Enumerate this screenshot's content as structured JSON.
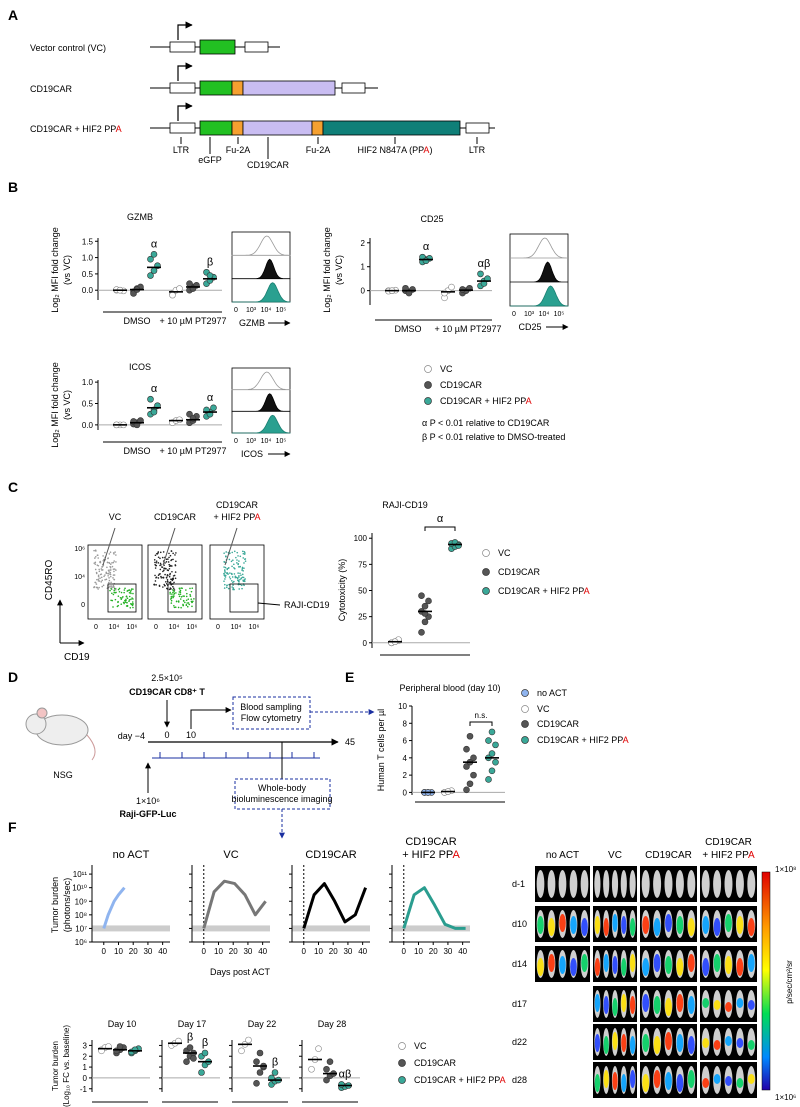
{
  "panels": {
    "a": "A",
    "b": "B",
    "c": "C",
    "d": "D",
    "e": "E",
    "f": "F"
  },
  "constructs": {
    "rows": [
      "Vector control (VC)",
      "CD19CAR",
      [
        "CD19CAR + HIF2 PP",
        "A"
      ]
    ],
    "annotations": [
      "LTR",
      "eGFP",
      "Fu-2A",
      "CD19CAR",
      "Fu-2A",
      [
        "HIF2 N847A (PP",
        "A",
        ")"
      ],
      "LTR"
    ]
  },
  "expression": {
    "ylabel": [
      "Log₂ MFI fold change",
      "(vs VC)"
    ],
    "conditions": [
      "DMSO",
      "+ 10 µM PT2977"
    ],
    "hist_ticks": [
      "0",
      "10³",
      "10⁴",
      "10⁵"
    ],
    "plots": [
      {
        "title": "GZMB",
        "hist_label": "GZMB",
        "ylim": [
          -0.3,
          1.6
        ],
        "yticks": [
          {
            "value": 0,
            "label": "0.0"
          },
          {
            "value": 0.5,
            "label": "0.5"
          },
          {
            "value": 1,
            "label": "1.0"
          },
          {
            "value": 1.5,
            "label": "1.5"
          }
        ],
        "groups": [
          {
            "points": [
              0,
              0,
              -0.02,
              0.02,
              0
            ],
            "median": 0,
            "color": "#ffffff"
          },
          {
            "points": [
              -0.05,
              0.05,
              0.1,
              -0.1,
              0.02
            ],
            "median": 0.02,
            "color": "#555555"
          },
          {
            "points": [
              0.45,
              0.6,
              0.75,
              0.95,
              1.1
            ],
            "median": 0.7,
            "color": "#3aa898",
            "label": "α"
          },
          {
            "points": [
              -0.1,
              0,
              0.05,
              -0.15
            ],
            "median": -0.05,
            "color": "#ffffff"
          },
          {
            "points": [
              0,
              0.1,
              0.15,
              0.2,
              0.05
            ],
            "median": 0.1,
            "color": "#555555"
          },
          {
            "points": [
              0.2,
              0.3,
              0.4,
              0.55,
              0.45
            ],
            "median": 0.35,
            "color": "#3aa898",
            "label": "β"
          }
        ]
      },
      {
        "title": "CD25",
        "hist_label": "CD25",
        "ylim": [
          -0.6,
          2.2
        ],
        "yticks": [
          0,
          1,
          2
        ],
        "groups": [
          {
            "points": [
              0,
              0,
              0.02,
              -0.02,
              0
            ],
            "median": 0,
            "color": "#ffffff"
          },
          {
            "points": [
              0,
              -0.05,
              0.05,
              0.1,
              -0.1
            ],
            "median": 0,
            "color": "#555555"
          },
          {
            "points": [
              1.2,
              1.3,
              1.35,
              1.4,
              1.25
            ],
            "median": 1.3,
            "color": "#3aa898",
            "label": "α"
          },
          {
            "points": [
              -0.3,
              0,
              0.15,
              -0.1
            ],
            "median": -0.05,
            "color": "#ffffff"
          },
          {
            "points": [
              -0.1,
              0,
              0.1,
              0.05
            ],
            "median": 0.02,
            "color": "#555555"
          },
          {
            "points": [
              0.2,
              0.4,
              0.5,
              0.7,
              0.3
            ],
            "median": 0.4,
            "color": "#3aa898",
            "label": "αβ"
          }
        ]
      },
      {
        "title": "ICOS",
        "hist_label": "ICOS",
        "ylim": [
          -0.12,
          1.05
        ],
        "yticks": [
          {
            "value": 0,
            "label": "0.0"
          },
          {
            "value": 0.5,
            "label": "0.5"
          },
          {
            "value": 1,
            "label": "1.0"
          }
        ],
        "groups": [
          {
            "points": [
              0,
              0,
              0,
              0
            ],
            "median": 0,
            "color": "#ffffff"
          },
          {
            "points": [
              0.02,
              0.05,
              0.1,
              0.08,
              0
            ],
            "median": 0.05,
            "color": "#555555"
          },
          {
            "points": [
              0.25,
              0.35,
              0.45,
              0.6,
              0.3
            ],
            "median": 0.4,
            "color": "#3aa898",
            "label": "α"
          },
          {
            "points": [
              0.05,
              0.1,
              0.12
            ],
            "median": 0.1,
            "color": "#ffffff"
          },
          {
            "points": [
              0.05,
              0.1,
              0.2,
              0.25,
              0.15
            ],
            "median": 0.12,
            "color": "#555555"
          },
          {
            "points": [
              0.2,
              0.3,
              0.4,
              0.35,
              0.25
            ],
            "median": 0.3,
            "color": "#3aa898",
            "label": "α"
          }
        ]
      }
    ],
    "legend": [
      {
        "name": "VC",
        "color": "#ffffff"
      },
      {
        "name": "CD19CAR",
        "color": "#555555"
      },
      {
        "name": [
          "CD19CAR + HIF2 PP",
          "A"
        ],
        "color": "#3aa898"
      }
    ],
    "notes": [
      "α P < 0.01 relative to CD19CAR",
      "β P < 0.01 relative to DMSO-treated"
    ]
  },
  "cytotoxicity": {
    "flow_titles": [
      [
        "VC"
      ],
      [
        "CD19CAR"
      ],
      [
        "CD19CAR",
        [
          "+ HIF2 PP",
          "A"
        ]
      ]
    ],
    "y_axis": "CD45RO",
    "x_axis": "CD19",
    "gate": "RAJI-CD19",
    "flow_yticks": [
      "10⁶",
      "10⁴",
      "0"
    ],
    "flow_xticks": [
      "0",
      "10⁴",
      "10⁶"
    ],
    "chart": {
      "title": "RAJI-CD19",
      "ylabel": "Cytotoxicity (%)",
      "ylim": [
        -5,
        105
      ],
      "yticks": [
        0,
        25,
        50,
        75,
        100
      ],
      "bracket": "α",
      "groups": [
        {
          "points": [
            0,
            1,
            2,
            0,
            1,
            3,
            0,
            1
          ],
          "median": 1,
          "color": "#ffffff"
        },
        {
          "points": [
            10,
            20,
            25,
            30,
            35,
            40,
            45,
            28
          ],
          "median": 30,
          "color": "#555555"
        },
        {
          "points": [
            90,
            92,
            94,
            95,
            96,
            93
          ],
          "median": 94,
          "color": "#3aa898"
        }
      ],
      "legend": [
        {
          "name": "VC",
          "color": "#ffffff"
        },
        {
          "name": "CD19CAR",
          "color": "#555555"
        },
        {
          "name": [
            "CD19CAR + HIF2 PP",
            "A"
          ],
          "color": "#3aa898"
        }
      ]
    }
  },
  "schedule": {
    "dose1": "2.5×10⁵",
    "cells": "CD19CAR CD8⁺ T",
    "day0": "0",
    "day10": "10",
    "day_start": "day −4",
    "day_end": "45",
    "sampling": [
      "Blood sampling",
      "Flow cytometry"
    ],
    "mouse": "NSG",
    "dose2": "1×10⁶",
    "tumor": "Raji-GFP-Luc",
    "imaging": [
      "Whole-body",
      "bioluminescence imaging"
    ]
  },
  "blood": {
    "title": "Peripheral blood (day 10)",
    "ylabel": "Human T cells per µl",
    "ylim": [
      -0.3,
      10
    ],
    "yticks": [
      0,
      2,
      4,
      6,
      8,
      10
    ],
    "bracket": "n.s.",
    "groups": [
      {
        "points": [
          0,
          0,
          0,
          0,
          0
        ],
        "median": 0,
        "color": "#8fb4ef"
      },
      {
        "points": [
          0,
          0.1,
          0.2,
          0,
          0.1
        ],
        "median": 0.1,
        "color": "#ffffff"
      },
      {
        "points": [
          0.3,
          1,
          2,
          3,
          3.5,
          4,
          5,
          6.5
        ],
        "median": 3.5,
        "color": "#555555"
      },
      {
        "points": [
          1.5,
          2.5,
          3.5,
          4,
          4.5,
          5.5,
          6,
          7
        ],
        "median": 4,
        "color": "#3aa898"
      }
    ],
    "legend": [
      {
        "name": "no ACT",
        "color": "#8fb4ef"
      },
      {
        "name": "VC",
        "color": "#ffffff"
      },
      {
        "name": "CD19CAR",
        "color": "#555555"
      },
      {
        "name": [
          "CD19CAR + HIF2 PP",
          "A"
        ],
        "color": "#3aa898"
      }
    ]
  },
  "tumor": {
    "ylabel": [
      "Tumor burden",
      "(photons/sec)"
    ],
    "xlabel": "Days post ACT",
    "log": true,
    "ylim": [
      1000000,
      200000000000
    ],
    "yticks": [
      {
        "value": 1000000,
        "label": "10⁶"
      },
      {
        "value": 10000000,
        "label": "10⁷"
      },
      {
        "value": 100000000,
        "label": "10⁸"
      },
      {
        "value": 1000000000,
        "label": "10⁹"
      },
      {
        "value": 10000000000,
        "label": "10¹⁰"
      },
      {
        "value": 100000000000,
        "label": "10¹¹"
      }
    ],
    "xlim": [
      -8,
      45
    ],
    "xticks": [
      0,
      10,
      20,
      30,
      40
    ],
    "panels": [
      {
        "title": [
          "no ACT"
        ],
        "x": [
          0,
          3,
          7,
          10,
          14
        ],
        "values": [
          10000000,
          100000000,
          1000000000,
          3000000000,
          10000000000
        ],
        "color": "#8fb4ef"
      },
      {
        "title": [
          "VC"
        ],
        "x": [
          0,
          7,
          14,
          21,
          28,
          35,
          42
        ],
        "values": [
          10000000,
          5000000000,
          30000000000,
          20000000000,
          3000000000,
          100000000,
          1000000000
        ],
        "color": "#777777"
      },
      {
        "title": [
          "CD19CAR"
        ],
        "x": [
          0,
          7,
          14,
          21,
          28,
          35,
          42
        ],
        "values": [
          10000000,
          3000000000,
          20000000000,
          1000000000,
          30000000,
          100000000,
          10000000000
        ],
        "color": "#000000"
      },
      {
        "title": [
          "CD19CAR",
          [
            "+ HIF2 PP",
            "A"
          ]
        ],
        "x": [
          0,
          7,
          14,
          21,
          28,
          35,
          42
        ],
        "values": [
          10000000,
          3000000000,
          10000000000,
          500000000,
          20000000,
          10000000,
          10000000
        ],
        "color": "#2a9d8f"
      }
    ]
  },
  "fold_change": {
    "ylabel": [
      "Tumor burden",
      "(Log₁₀ FC vs. baseline)"
    ],
    "ylim": [
      -1.3,
      3.5
    ],
    "yticks": [
      -1,
      0,
      1,
      2,
      3
    ],
    "panels": [
      {
        "title": "Day 10",
        "groups": [
          {
            "points": [
              2.6,
              2.8,
              2.9,
              2.5
            ],
            "median": 2.7,
            "color": "#ffffff"
          },
          {
            "points": [
              2.3,
              2.6,
              2.8,
              2.5,
              2.9
            ],
            "median": 2.6,
            "color": "#555555"
          },
          {
            "points": [
              2.3,
              2.5,
              2.7,
              2.4,
              2.6
            ],
            "median": 2.5,
            "color": "#3aa898"
          }
        ]
      },
      {
        "title": "Day 17",
        "groups": [
          {
            "points": [
              3,
              3.2,
              3.4
            ],
            "median": 3.2,
            "color": "#ffffff"
          },
          {
            "points": [
              1.5,
              2,
              2.3,
              2.5,
              2.8,
              1.8
            ],
            "median": 2.3,
            "color": "#555555",
            "label": "β"
          },
          {
            "points": [
              0.5,
              1.2,
              1.5,
              2,
              2.3
            ],
            "median": 1.5,
            "color": "#3aa898",
            "label": "β"
          }
        ]
      },
      {
        "title": "Day 22",
        "groups": [
          {
            "points": [
              2.5,
              3.1,
              3.5
            ],
            "median": 3.1,
            "color": "#ffffff"
          },
          {
            "points": [
              -0.5,
              0.5,
              1,
              1.5,
              2.3,
              1.1
            ],
            "median": 1.1,
            "color": "#555555"
          },
          {
            "points": [
              -0.6,
              -0.3,
              -0.2,
              0,
              0.5
            ],
            "median": -0.2,
            "color": "#3aa898",
            "label": "β"
          }
        ]
      },
      {
        "title": "Day 28",
        "groups": [
          {
            "points": [
              0.8,
              1.7,
              2.7
            ],
            "median": 1.7,
            "color": "#ffffff"
          },
          {
            "points": [
              -0.2,
              0.2,
              0.4,
              0.8,
              1.5
            ],
            "median": 0.4,
            "color": "#555555"
          },
          {
            "points": [
              -0.9,
              -0.8,
              -0.7,
              -0.6
            ],
            "median": -0.7,
            "color": "#3aa898",
            "label": "αβ"
          }
        ]
      }
    ],
    "legend": [
      {
        "name": "VC",
        "color": "#ffffff"
      },
      {
        "name": "CD19CAR",
        "color": "#555555"
      },
      {
        "name": [
          "CD19CAR + HIF2 PP",
          "A"
        ],
        "color": "#3aa898"
      }
    ]
  },
  "imaging": {
    "columns": [
      [
        "no ACT"
      ],
      [
        "VC"
      ],
      [
        "CD19CAR"
      ],
      [
        "CD19CAR",
        [
          "+ HIF2 PP",
          "A"
        ]
      ]
    ],
    "rows": [
      "d-1",
      "d10",
      "d14",
      "d17",
      "d22",
      "d28"
    ],
    "scale_max": "1×10⁸",
    "scale_min": "1×10⁶",
    "scale_unit": "p/sec/cm²/sr"
  }
}
